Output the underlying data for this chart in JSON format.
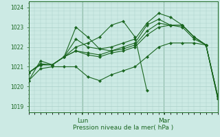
{
  "background_color": "#cceae4",
  "grid_color": "#aacfc8",
  "line_color": "#1a6620",
  "ylim": [
    1018.7,
    1024.3
  ],
  "ylabel": "Pression niveau de la mer( hPa )",
  "tick_labels_y": [
    1019,
    1020,
    1021,
    1022,
    1023,
    1024
  ],
  "series": [
    [
      1020.3,
      1021.3,
      1021.1,
      1021.5,
      1022.0,
      1022.2,
      1022.5,
      1023.1,
      1023.3,
      1022.5,
      1019.8,
      null,
      null,
      null,
      null,
      null,
      null,
      null,
      null,
      null,
      null
    ],
    [
      1020.7,
      1021.15,
      1021.1,
      1021.5,
      1023.0,
      1022.5,
      1021.9,
      1022.0,
      1022.2,
      1022.4,
      1023.2,
      1023.7,
      1023.5,
      1023.1,
      1022.5,
      1022.1,
      1019.4,
      null,
      null,
      null,
      null
    ],
    [
      1020.7,
      1021.1,
      1021.1,
      1021.5,
      1022.4,
      1022.0,
      1021.9,
      1021.8,
      1022.0,
      1022.2,
      1023.1,
      1023.4,
      1023.1,
      1023.1,
      1022.5,
      1022.1,
      1019.4,
      null,
      null,
      null,
      null
    ],
    [
      1020.7,
      1021.1,
      1021.1,
      1021.5,
      1021.8,
      1021.7,
      1021.6,
      1021.8,
      1021.9,
      1022.1,
      1022.8,
      1023.2,
      1023.1,
      1023.1,
      1022.5,
      1022.1,
      1019.5,
      null,
      null,
      null,
      null
    ],
    [
      1020.7,
      1021.1,
      1021.1,
      1021.5,
      1021.8,
      1021.6,
      1021.5,
      1021.7,
      1021.8,
      1022.0,
      1022.6,
      1023.0,
      1023.1,
      1023.0,
      1022.4,
      1022.1,
      1019.5,
      null,
      null,
      null,
      null
    ],
    [
      1020.3,
      1020.9,
      1021.0,
      1021.0,
      1021.0,
      1020.5,
      1020.3,
      1020.6,
      1020.8,
      1021.0,
      1021.5,
      1022.0,
      1022.2,
      1022.2,
      1022.2,
      1022.1,
      1019.5,
      null,
      null,
      null,
      null
    ]
  ],
  "x_ticks_day": [
    0.285,
    0.715
  ],
  "x_day_labels": [
    "Lun",
    "Mar"
  ],
  "vline_positions": [
    0.285,
    0.715
  ],
  "n_points": 17,
  "figsize": [
    3.2,
    2.0
  ],
  "dpi": 100
}
